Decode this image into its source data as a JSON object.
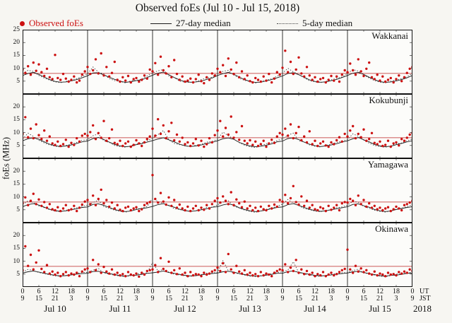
{
  "chart_data": {
    "type": "scatter",
    "title": "Observed foEs (Jul 10 - Jul 15, 2018)",
    "ylabel": "foEs (MHz)",
    "ylim": [
      0,
      25
    ],
    "y_ticks": [
      5,
      10,
      15,
      20,
      25
    ],
    "x_hours_total": 144,
    "x_step_observed_hours": 1,
    "x_step_median_hours": 2,
    "threshold_mhz": 8,
    "grid": false,
    "legend_position": "top",
    "colors": {
      "observed": "#cc1111",
      "median27": "#1a1a1a",
      "median5": "#444444",
      "threshold": "#bb2222"
    },
    "legend": [
      {
        "label": "Observed foEs",
        "marker": "red-dot",
        "color": "#cc1111"
      },
      {
        "label": "27-day median",
        "marker": "solid-line",
        "color": "#1a1a1a"
      },
      {
        "label": "5-day median",
        "marker": "dotted-line",
        "color": "#444444"
      }
    ],
    "x_axis": {
      "ut_ticks": [
        "0",
        "6",
        "12",
        "18"
      ],
      "jst_ticks": [
        "9",
        "15",
        "21",
        "3"
      ],
      "ut_end": "0",
      "jst_end": "9",
      "ut_label": "UT",
      "jst_label": "JST",
      "day_labels": [
        "Jul 10",
        "Jul 11",
        "Jul 12",
        "Jul 13",
        "Jul 14",
        "Jul 15"
      ],
      "year": "2018"
    },
    "panels": [
      {
        "station": "Wakkanai",
        "observed": [
          9.5,
          8.2,
          10.8,
          7.5,
          12.2,
          9.0,
          11.5,
          8.5,
          7.0,
          9.8,
          6.5,
          5.8,
          15.2,
          6.2,
          5.5,
          7.8,
          6.0,
          4.8,
          5.5,
          6.8,
          4.5,
          5.2,
          7.5,
          8.8,
          10.5,
          7.8,
          9.2,
          13.5,
          8.0,
          15.8,
          7.2,
          10.5,
          6.8,
          8.2,
          12.5,
          5.5,
          4.8,
          6.5,
          5.2,
          7.0,
          4.5,
          5.8,
          6.2,
          4.8,
          5.5,
          7.2,
          6.0,
          9.5,
          8.8,
          12.0,
          7.5,
          14.5,
          9.2,
          8.0,
          10.8,
          6.5,
          13.2,
          7.8,
          5.5,
          6.8,
          4.8,
          5.2,
          6.0,
          4.5,
          5.8,
          7.5,
          5.0,
          4.2,
          6.5,
          5.5,
          8.0,
          7.2,
          9.8,
          8.5,
          11.2,
          7.0,
          13.8,
          9.5,
          7.8,
          12.2,
          6.5,
          8.8,
          5.8,
          7.2,
          5.0,
          4.5,
          6.2,
          5.5,
          4.8,
          6.8,
          5.2,
          7.8,
          4.5,
          6.0,
          8.5,
          7.5,
          10.2,
          16.8,
          8.5,
          12.5,
          7.8,
          9.5,
          14.2,
          8.0,
          6.8,
          10.5,
          7.2,
          5.5,
          6.5,
          4.8,
          5.8,
          6.2,
          4.5,
          5.5,
          7.0,
          5.2,
          6.8,
          4.8,
          7.5,
          9.2,
          8.5,
          11.8,
          9.2,
          7.5,
          13.5,
          8.8,
          7.0,
          9.8,
          12.2,
          6.5,
          5.8,
          7.5,
          5.2,
          6.8,
          4.8,
          5.5,
          6.2,
          4.5,
          5.8,
          7.2,
          5.0,
          6.5,
          8.2,
          9.8,
          10.5
        ],
        "median27": [
          7.2,
          8.0,
          8.4,
          7.6,
          6.6,
          5.6,
          4.9,
          4.6,
          4.7,
          5.1,
          5.6,
          6.3,
          7.1,
          8.2,
          8.3,
          7.4,
          6.5,
          5.7,
          5.0,
          4.5,
          4.8,
          5.2,
          5.5,
          6.4,
          7.3,
          8.1,
          8.5,
          7.5,
          6.4,
          5.5,
          4.8,
          4.6,
          4.7,
          5.0,
          5.7,
          6.2,
          7.2,
          7.9,
          8.4,
          7.7,
          6.6,
          5.6,
          4.9,
          4.5,
          4.6,
          5.1,
          5.6,
          6.3,
          7.0,
          8.0,
          8.3,
          7.5,
          6.5,
          5.5,
          4.9,
          4.6,
          4.7,
          5.2,
          5.7,
          6.4,
          7.2,
          8.1,
          8.4,
          7.6,
          6.5,
          5.6,
          4.8,
          4.5,
          4.7,
          5.1,
          5.6,
          6.3,
          7.2
        ],
        "median5": [
          8.0,
          9.2,
          8.8,
          7.2,
          6.2,
          5.4,
          4.7,
          4.4,
          4.9,
          5.5,
          6.0,
          6.8,
          7.8,
          10.5,
          8.5,
          7.8,
          6.0,
          5.2,
          4.9,
          4.3,
          5.1,
          5.3,
          5.8,
          7.0,
          8.2,
          9.0,
          9.5,
          7.0,
          6.4,
          5.0,
          4.6,
          4.5,
          4.8,
          5.6,
          6.2,
          6.5,
          7.9,
          8.8,
          9.2,
          7.4,
          6.1,
          5.3,
          4.8,
          4.2,
          5.0,
          5.4,
          5.9,
          6.9,
          8.1,
          10.0,
          8.6,
          7.6,
          6.3,
          5.1,
          4.7,
          4.4,
          4.9,
          5.5,
          6.1,
          6.6,
          8.0,
          9.5,
          8.9,
          7.3,
          6.2,
          5.2,
          4.6,
          4.3,
          5.0,
          5.4,
          6.0,
          6.7,
          8.0
        ]
      },
      {
        "station": "Kokubunji",
        "observed": [
          9.5,
          16.0,
          8.2,
          11.5,
          7.8,
          13.2,
          9.0,
          7.5,
          10.8,
          6.8,
          8.5,
          5.8,
          5.2,
          6.5,
          4.8,
          5.5,
          7.2,
          4.5,
          6.0,
          5.2,
          7.8,
          6.5,
          8.8,
          9.5,
          8.8,
          10.2,
          12.8,
          7.5,
          9.8,
          8.0,
          14.5,
          6.8,
          7.8,
          11.2,
          6.0,
          5.5,
          6.8,
          4.8,
          5.8,
          6.5,
          4.5,
          5.2,
          7.0,
          5.8,
          4.8,
          6.2,
          7.5,
          8.5,
          11.5,
          8.8,
          15.2,
          9.5,
          12.8,
          7.8,
          10.5,
          13.8,
          7.0,
          9.2,
          6.5,
          8.0,
          5.5,
          6.2,
          4.8,
          5.8,
          7.5,
          5.0,
          6.8,
          4.5,
          5.5,
          7.8,
          6.2,
          9.0,
          10.8,
          14.5,
          8.5,
          11.8,
          9.2,
          16.2,
          8.0,
          10.2,
          7.2,
          12.5,
          6.8,
          5.8,
          7.0,
          5.2,
          6.5,
          4.8,
          5.5,
          6.8,
          4.5,
          5.8,
          7.2,
          6.0,
          8.5,
          9.8,
          9.2,
          11.5,
          8.8,
          13.2,
          7.8,
          9.8,
          12.2,
          7.0,
          8.5,
          6.2,
          10.5,
          5.5,
          6.8,
          4.8,
          5.8,
          6.5,
          5.0,
          4.5,
          6.2,
          5.5,
          7.0,
          8.2,
          6.5,
          9.5,
          8.5,
          10.8,
          12.5,
          7.8,
          9.5,
          8.2,
          11.2,
          6.8,
          7.5,
          9.8,
          6.0,
          5.5,
          6.5,
          4.8,
          5.2,
          6.8,
          4.5,
          5.8,
          6.2,
          5.0,
          7.5,
          6.8,
          8.0,
          9.2,
          9.8
        ],
        "median27": [
          6.8,
          7.6,
          8.0,
          7.4,
          6.4,
          5.5,
          4.9,
          4.6,
          4.8,
          5.2,
          5.8,
          6.4,
          6.7,
          7.7,
          8.1,
          7.3,
          6.3,
          5.4,
          4.8,
          4.5,
          4.7,
          5.3,
          5.7,
          6.3,
          6.9,
          7.5,
          8.0,
          7.2,
          6.4,
          5.5,
          4.9,
          4.6,
          4.8,
          5.2,
          5.8,
          6.2,
          6.8,
          7.6,
          7.9,
          7.4,
          6.2,
          5.4,
          4.8,
          4.5,
          4.7,
          5.1,
          5.6,
          6.4,
          6.7,
          7.7,
          8.0,
          7.3,
          6.3,
          5.5,
          4.9,
          4.6,
          4.8,
          5.2,
          5.7,
          6.3,
          6.8,
          7.6,
          8.1,
          7.2,
          6.4,
          5.4,
          4.8,
          4.5,
          4.7,
          5.3,
          5.8,
          6.4,
          6.8
        ],
        "median5": [
          7.5,
          9.8,
          8.5,
          7.0,
          6.0,
          5.2,
          4.7,
          4.4,
          5.0,
          5.5,
          6.2,
          7.0,
          7.2,
          8.8,
          9.5,
          6.8,
          6.2,
          5.0,
          4.6,
          4.3,
          4.9,
          5.6,
          6.0,
          6.8,
          7.8,
          9.2,
          10.8,
          7.2,
          5.8,
          5.3,
          4.8,
          4.5,
          5.1,
          5.4,
          6.3,
          6.6,
          7.4,
          10.2,
          8.8,
          7.5,
          6.1,
          5.1,
          4.5,
          4.2,
          4.8,
          5.7,
          6.1,
          6.9,
          7.6,
          9.0,
          9.8,
          6.9,
          6.3,
          5.2,
          4.7,
          4.4,
          5.0,
          5.5,
          6.2,
          6.7,
          7.3,
          9.5,
          8.6,
          7.1,
          5.9,
          5.0,
          4.6,
          4.3,
          4.9,
          5.6,
          6.0,
          6.8,
          7.5
        ]
      },
      {
        "station": "Yamagawa",
        "observed": [
          7.5,
          9.8,
          6.8,
          8.5,
          11.2,
          7.2,
          9.0,
          6.5,
          8.0,
          5.8,
          7.2,
          5.2,
          4.8,
          6.0,
          4.5,
          5.5,
          6.8,
          4.8,
          5.2,
          6.5,
          4.5,
          5.8,
          7.0,
          8.2,
          8.8,
          7.2,
          10.5,
          6.8,
          9.2,
          12.8,
          7.5,
          8.8,
          6.2,
          7.8,
          5.5,
          6.8,
          5.0,
          4.5,
          5.8,
          6.2,
          4.8,
          5.5,
          6.0,
          4.5,
          5.2,
          6.8,
          7.5,
          8.0,
          18.5,
          9.2,
          7.8,
          11.5,
          8.2,
          7.0,
          9.8,
          6.5,
          8.8,
          5.8,
          7.0,
          5.5,
          4.8,
          6.2,
          4.5,
          5.5,
          6.5,
          4.8,
          5.8,
          5.0,
          6.8,
          5.5,
          7.2,
          8.5,
          9.5,
          7.8,
          10.2,
          8.5,
          7.2,
          11.8,
          6.8,
          9.0,
          7.5,
          6.0,
          8.2,
          5.5,
          6.5,
          4.8,
          5.8,
          4.5,
          6.2,
          5.2,
          4.8,
          6.5,
          5.5,
          7.0,
          6.2,
          8.8,
          8.2,
          10.8,
          7.5,
          9.5,
          14.2,
          8.0,
          7.0,
          10.2,
          6.5,
          8.5,
          5.8,
          6.8,
          5.2,
          4.8,
          6.0,
          5.5,
          4.5,
          6.5,
          5.0,
          5.8,
          6.8,
          4.8,
          7.5,
          8.0,
          7.8,
          9.2,
          8.5,
          6.8,
          10.5,
          7.2,
          8.8,
          6.2,
          7.5,
          5.8,
          6.5,
          5.2,
          5.8,
          4.8,
          5.5,
          6.0,
          4.5,
          5.2,
          6.2,
          5.5,
          4.8,
          6.8,
          7.2,
          7.8,
          8.5
        ],
        "median27": [
          6.2,
          7.0,
          7.4,
          6.8,
          6.0,
          5.2,
          4.7,
          4.4,
          4.6,
          5.0,
          5.4,
          5.9,
          6.1,
          7.1,
          7.3,
          6.7,
          5.9,
          5.1,
          4.6,
          4.3,
          4.5,
          5.1,
          5.5,
          5.8,
          6.3,
          7.0,
          7.4,
          6.6,
          6.0,
          5.2,
          4.7,
          4.4,
          4.6,
          5.0,
          5.4,
          6.0,
          6.2,
          6.9,
          7.3,
          6.8,
          5.8,
          5.1,
          4.6,
          4.3,
          4.5,
          4.9,
          5.5,
          5.9,
          6.1,
          7.0,
          7.4,
          6.7,
          5.9,
          5.2,
          4.7,
          4.4,
          4.6,
          5.0,
          5.4,
          5.8,
          6.2,
          7.1,
          7.3,
          6.6,
          6.0,
          5.1,
          4.6,
          4.3,
          4.5,
          5.1,
          5.5,
          5.9,
          6.2
        ],
        "median5": [
          7.0,
          8.5,
          7.8,
          6.5,
          5.8,
          5.0,
          4.5,
          4.2,
          4.8,
          5.2,
          5.8,
          6.4,
          6.8,
          7.8,
          8.8,
          6.2,
          5.6,
          4.8,
          4.4,
          4.1,
          4.6,
          5.3,
          5.6,
          6.2,
          9.5,
          8.2,
          7.5,
          6.8,
          5.4,
          5.1,
          4.6,
          4.3,
          4.7,
          5.1,
          5.9,
          6.0,
          6.9,
          8.0,
          8.5,
          6.4,
          5.7,
          4.9,
          4.3,
          4.0,
          4.5,
          5.2,
          5.7,
          6.3,
          7.2,
          9.0,
          7.6,
          6.6,
          5.5,
          5.0,
          4.5,
          4.2,
          4.8,
          5.0,
          5.8,
          6.1,
          6.8,
          8.3,
          7.9,
          6.3,
          5.6,
          4.8,
          4.4,
          4.1,
          4.6,
          5.3,
          5.6,
          6.2,
          7.0
        ]
      },
      {
        "station": "Okinawa",
        "observed": [
          6.5,
          15.8,
          8.2,
          12.5,
          6.8,
          9.5,
          14.2,
          7.0,
          5.8,
          8.5,
          5.2,
          6.0,
          4.8,
          5.5,
          4.2,
          5.0,
          5.8,
          4.5,
          5.2,
          4.8,
          5.5,
          4.2,
          6.0,
          6.8,
          7.2,
          5.8,
          10.5,
          6.5,
          8.8,
          5.5,
          7.8,
          6.0,
          5.2,
          6.8,
          4.8,
          5.5,
          4.5,
          5.0,
          4.2,
          5.8,
          4.8,
          4.5,
          5.2,
          4.0,
          5.5,
          4.8,
          6.2,
          6.5,
          6.8,
          8.5,
          5.8,
          11.2,
          7.0,
          6.2,
          9.8,
          5.5,
          6.5,
          5.0,
          7.2,
          4.8,
          5.5,
          4.2,
          5.8,
          4.5,
          5.0,
          4.8,
          4.2,
          5.5,
          4.8,
          5.2,
          6.0,
          6.5,
          7.5,
          6.2,
          9.2,
          5.8,
          12.8,
          6.8,
          5.5,
          8.2,
          6.0,
          5.2,
          6.5,
          4.8,
          5.5,
          4.5,
          5.0,
          4.2,
          5.8,
          4.5,
          5.2,
          4.8,
          4.2,
          5.5,
          6.2,
          6.8,
          6.5,
          8.8,
          5.8,
          7.5,
          6.2,
          10.5,
          5.5,
          6.8,
          5.0,
          6.2,
          4.8,
          5.5,
          4.2,
          5.0,
          4.5,
          5.8,
          4.2,
          4.8,
          5.5,
          4.5,
          5.0,
          5.8,
          6.5,
          7.0,
          14.5,
          6.8,
          5.5,
          8.2,
          6.0,
          7.2,
          5.8,
          6.5,
          5.2,
          4.8,
          6.0,
          4.5,
          5.2,
          4.8,
          4.2,
          5.5,
          4.8,
          5.0,
          4.5,
          5.8,
          5.2,
          6.0,
          5.5,
          6.8,
          6.2
        ],
        "median27": [
          5.4,
          5.9,
          6.2,
          5.8,
          5.3,
          4.9,
          4.5,
          4.3,
          4.4,
          4.7,
          5.0,
          5.2,
          5.3,
          6.0,
          6.1,
          5.7,
          5.2,
          4.8,
          4.4,
          4.2,
          4.5,
          4.6,
          4.9,
          5.3,
          5.5,
          5.8,
          6.2,
          5.6,
          5.3,
          4.9,
          4.5,
          4.3,
          4.4,
          4.7,
          5.0,
          5.2,
          5.4,
          5.9,
          6.1,
          5.8,
          5.2,
          4.8,
          4.4,
          4.2,
          4.3,
          4.6,
          4.9,
          5.3,
          5.3,
          6.0,
          6.2,
          5.7,
          5.3,
          4.9,
          4.5,
          4.3,
          4.4,
          4.7,
          5.0,
          5.2,
          5.4,
          5.9,
          6.1,
          5.6,
          5.2,
          4.8,
          4.4,
          4.2,
          4.5,
          4.6,
          4.9,
          5.3,
          5.4
        ],
        "median5": [
          5.8,
          6.8,
          6.4,
          5.6,
          5.2,
          4.7,
          4.3,
          4.1,
          4.5,
          4.9,
          5.3,
          5.6,
          5.6,
          6.5,
          7.2,
          5.4,
          5.0,
          4.6,
          4.2,
          4.0,
          4.4,
          5.0,
          5.2,
          5.5,
          9.5,
          6.2,
          6.8,
          5.8,
          4.9,
          4.7,
          4.3,
          4.1,
          4.5,
          4.8,
          5.4,
          5.4,
          5.7,
          10.2,
          6.3,
          5.5,
          5.1,
          4.6,
          4.2,
          4.0,
          4.4,
          4.9,
          5.2,
          5.6,
          5.9,
          6.6,
          9.8,
          5.6,
          5.0,
          4.7,
          4.3,
          4.1,
          4.5,
          4.8,
          5.3,
          5.5,
          5.6,
          6.4,
          6.9,
          5.4,
          5.1,
          4.6,
          4.2,
          4.0,
          4.4,
          5.0,
          5.2,
          5.5,
          5.8
        ]
      }
    ]
  }
}
